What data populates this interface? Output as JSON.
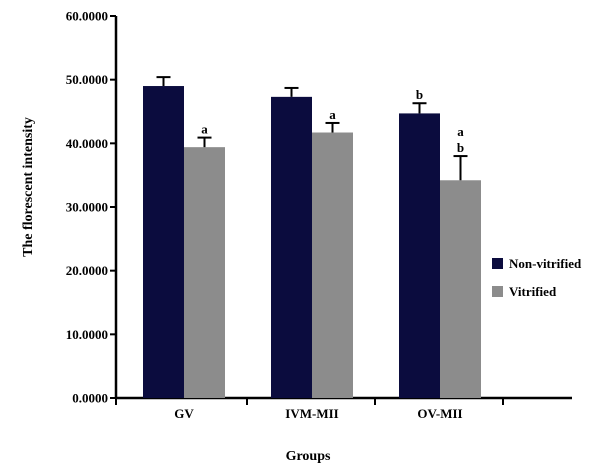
{
  "chart_data": {
    "type": "bar",
    "title": "",
    "xlabel": "Groups",
    "ylabel": "The florescent intensity",
    "ylim": [
      0,
      60
    ],
    "yticks": [
      "0.0000",
      "10.0000",
      "20.0000",
      "30.0000",
      "40.0000",
      "50.0000",
      "60.0000"
    ],
    "categories": [
      "GV",
      "IVM-MII",
      "OV-MII"
    ],
    "series": [
      {
        "name": "Non-vitrified",
        "color": "#0b0c3e",
        "values": [
          49.0,
          47.3,
          44.7
        ],
        "errors": [
          1.4,
          1.4,
          1.6
        ]
      },
      {
        "name": "Vitrified",
        "color": "#8c8c8c",
        "values": [
          39.4,
          41.7,
          34.2
        ],
        "errors": [
          1.5,
          1.5,
          3.8
        ]
      }
    ],
    "annotations": [
      {
        "category": 0,
        "series": 1,
        "text": [
          "a"
        ]
      },
      {
        "category": 1,
        "series": 1,
        "text": [
          "a"
        ]
      },
      {
        "category": 2,
        "series": 0,
        "text": [
          "b"
        ]
      },
      {
        "category": 2,
        "series": 1,
        "text": [
          "a",
          "b"
        ]
      }
    ],
    "legend_position": "right",
    "grid": false
  }
}
